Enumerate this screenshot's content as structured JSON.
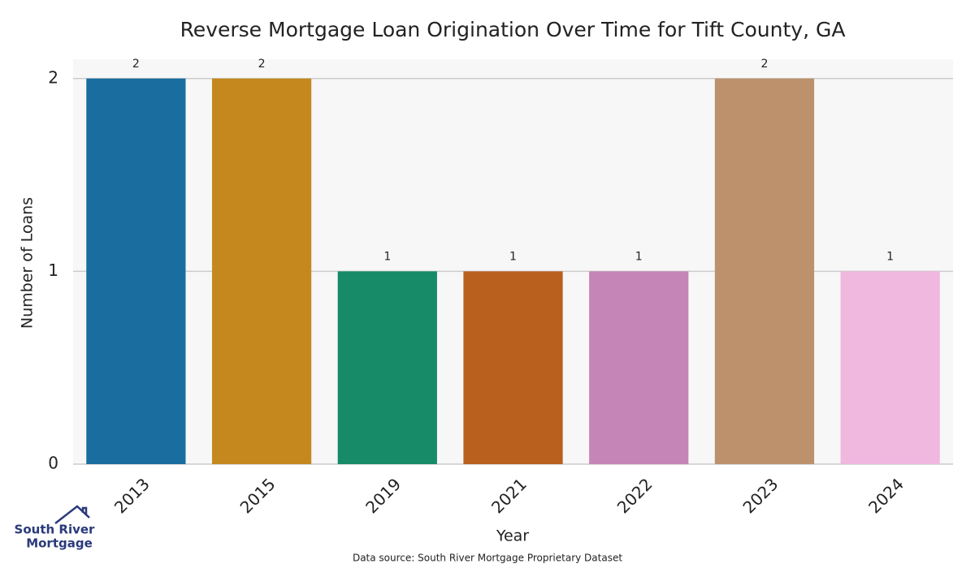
{
  "chart_data": {
    "type": "bar",
    "title": "Reverse Mortgage Loan Origination Over Time for Tift County, GA",
    "x_label": "Year",
    "y_label": "Number of Loans",
    "categories": [
      "2013",
      "2015",
      "2019",
      "2021",
      "2022",
      "2023",
      "2024"
    ],
    "values": [
      2,
      2,
      1,
      1,
      1,
      2,
      1
    ],
    "colors": [
      "#1a6e9f",
      "#c4881f",
      "#178a68",
      "#b9601e",
      "#c585b7",
      "#bc916c",
      "#f0b7df"
    ],
    "ylim": [
      0,
      2.1
    ],
    "yticks": [
      0,
      1,
      2
    ],
    "grid": true,
    "source": "Data source: South River Mortgage Proprietary Dataset"
  },
  "logo": {
    "line1": "South River",
    "line2": "Mortgage"
  }
}
